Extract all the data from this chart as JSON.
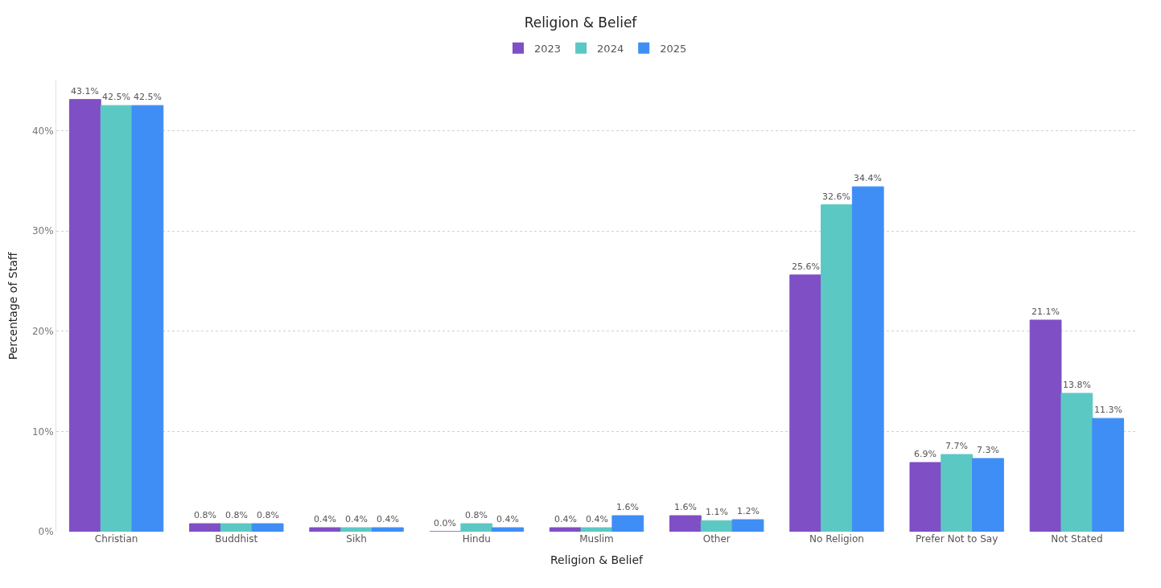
{
  "chart_data": {
    "type": "bar",
    "title": "Religion & Belief",
    "xlabel": "Religion & Belief",
    "ylabel": "Percentage of Staff",
    "categories": [
      "Christian",
      "Buddhist",
      "Sikh",
      "Hindu",
      "Muslim",
      "Other",
      "No Religion",
      "Prefer Not to Say",
      "Not Stated"
    ],
    "series": [
      {
        "name": "2023",
        "color": "#7f4fc5",
        "values": [
          43.1,
          0.8,
          0.4,
          0.0,
          0.4,
          1.6,
          25.6,
          6.9,
          21.1
        ],
        "value_labels": [
          "43.1%",
          "0.8%",
          "0.4%",
          "0.0%",
          "0.4%",
          "1.6%",
          "25.6%",
          "6.9%",
          "21.1%"
        ]
      },
      {
        "name": "2024",
        "color": "#5cc8c4",
        "values": [
          42.5,
          0.8,
          0.4,
          0.8,
          0.4,
          1.1,
          32.6,
          7.7,
          13.8
        ],
        "value_labels": [
          "42.5%",
          "0.8%",
          "0.4%",
          "0.8%",
          "0.4%",
          "1.1%",
          "32.6%",
          "7.7%",
          "13.8%"
        ]
      },
      {
        "name": "2025",
        "color": "#3f8ef5",
        "values": [
          42.5,
          0.8,
          0.4,
          0.4,
          1.6,
          1.2,
          34.4,
          7.3,
          11.3
        ],
        "value_labels": [
          "42.5%",
          "0.8%",
          "0.4%",
          "0.4%",
          "1.6%",
          "1.2%",
          "34.4%",
          "7.3%",
          "11.3%"
        ]
      }
    ],
    "ylim": [
      0,
      45
    ],
    "yticks": [
      {
        "value": 0,
        "label": "0%"
      },
      {
        "value": 10,
        "label": "10%"
      },
      {
        "value": 20,
        "label": "20%"
      },
      {
        "value": 30,
        "label": "30%"
      },
      {
        "value": 40,
        "label": "40%"
      }
    ],
    "grid": "y",
    "legend": "top"
  }
}
